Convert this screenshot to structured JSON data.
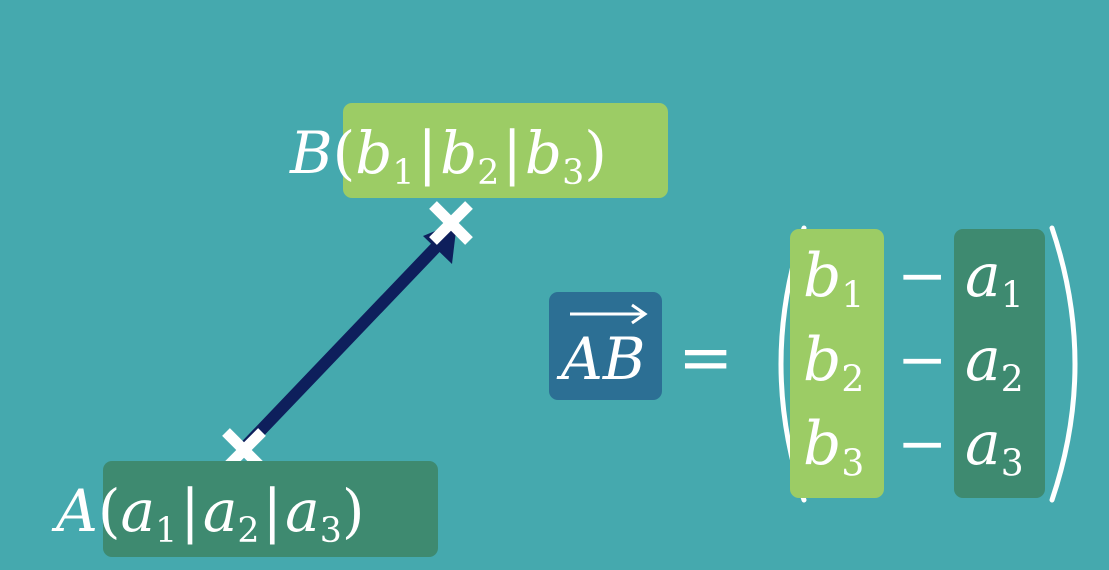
{
  "point_b": {
    "name": "B",
    "open": "(",
    "c1": "b",
    "s1": "1",
    "sep1": "|",
    "c2": "b",
    "s2": "2",
    "sep2": "|",
    "c3": "b",
    "s3": "3",
    "close": ")"
  },
  "point_a": {
    "name": "A",
    "open": "(",
    "c1": "a",
    "s1": "1",
    "sep1": "|",
    "c2": "a",
    "s2": "2",
    "sep2": "|",
    "c3": "a",
    "s3": "3",
    "close": ")"
  },
  "vector": {
    "label": "AB",
    "equals": "="
  },
  "matrix": {
    "rows": [
      {
        "b": "b",
        "bs": "1",
        "minus": "−",
        "a": "a",
        "as": "1"
      },
      {
        "b": "b",
        "bs": "2",
        "minus": "−",
        "a": "a",
        "as": "2"
      },
      {
        "b": "b",
        "bs": "3",
        "minus": "−",
        "a": "a",
        "as": "3"
      }
    ]
  },
  "colors": {
    "background": "#45a9ae",
    "b_highlight": "#9ccc65",
    "a_highlight": "#3e8a70",
    "vector_box": "#2c6f94",
    "arrow": "#0e1f5c",
    "text": "#ffffff"
  }
}
